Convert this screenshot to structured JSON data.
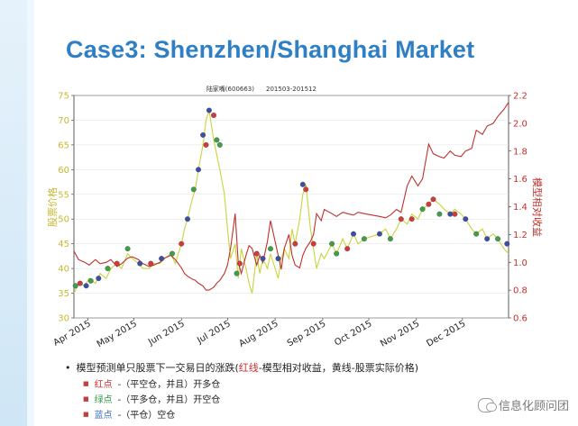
{
  "slide": {
    "title": "Case3: Shenzhen/Shanghai Market",
    "bullets": [
      {
        "text_before": "模型预测单只股票下一交易日的涨跌(",
        "red_part": "红线",
        "text_after": "-模型相对收益，黄线-股票实际价格)"
      },
      {
        "colored": "红点",
        "color": "red",
        "rest": "-（平空仓，并且）开多仓"
      },
      {
        "colored": "绿点",
        "color": "green",
        "rest": "-（平多仓，并且）开空仓"
      },
      {
        "colored": "蓝点",
        "color": "blue",
        "rest": "-（平仓）空仓"
      }
    ],
    "watermark": "信息化顾问团"
  },
  "chart_data": {
    "type": "line",
    "title": "陆家嘴(600663)",
    "subtitle": "201503-201512",
    "ylabel_left": "股票价格",
    "ylabel_right": "模型相对收益",
    "ylim_left": [
      30,
      75
    ],
    "ylim_right": [
      0.6,
      2.2
    ],
    "yticks_left": [
      "30",
      "35",
      "40",
      "45",
      "50",
      "55",
      "60",
      "65",
      "70",
      "75"
    ],
    "yticks_right": [
      "0.6",
      "0.8",
      "1.0",
      "1.2",
      "1.4",
      "1.6",
      "1.8",
      "2.0",
      "2.2"
    ],
    "xticks": [
      "Apr 2015",
      "May 2015",
      "Jun 2015",
      "Jul 2015",
      "Aug 2015",
      "Sep 2015",
      "Oct 2015",
      "Nov 2015",
      "Dec 2015"
    ],
    "x_range": [
      "2015-03-23",
      "2015-12-31"
    ],
    "colors": {
      "price": "#c8d43c",
      "return": "#c0302c",
      "red_dot": "#d23a3a",
      "green_dot": "#3f9e4a",
      "blue_dot": "#3b4fa8",
      "left_axis": "#c8b830",
      "right_axis": "#c0302c"
    },
    "series": [
      {
        "name": "黄线",
        "axis": "left",
        "points": [
          [
            "2015-03-23",
            35
          ],
          [
            "2015-03-26",
            37
          ],
          [
            "2015-03-30",
            36.5
          ],
          [
            "2015-04-02",
            38
          ],
          [
            "2015-04-06",
            37
          ],
          [
            "2015-04-09",
            39
          ],
          [
            "2015-04-13",
            38
          ],
          [
            "2015-04-16",
            40
          ],
          [
            "2015-04-20",
            41
          ],
          [
            "2015-04-23",
            40
          ],
          [
            "2015-04-27",
            43
          ],
          [
            "2015-04-30",
            42
          ],
          [
            "2015-05-04",
            41
          ],
          [
            "2015-05-07",
            40
          ],
          [
            "2015-05-11",
            40
          ],
          [
            "2015-05-14",
            41
          ],
          [
            "2015-05-18",
            41
          ],
          [
            "2015-05-21",
            42
          ],
          [
            "2015-05-25",
            43
          ],
          [
            "2015-05-28",
            41
          ],
          [
            "2015-06-01",
            45
          ],
          [
            "2015-06-03",
            48
          ],
          [
            "2015-06-05",
            50
          ],
          [
            "2015-06-08",
            54
          ],
          [
            "2015-06-10",
            56
          ],
          [
            "2015-06-12",
            60
          ],
          [
            "2015-06-15",
            65
          ],
          [
            "2015-06-17",
            70
          ],
          [
            "2015-06-19",
            72
          ],
          [
            "2015-06-22",
            66
          ],
          [
            "2015-06-24",
            63
          ],
          [
            "2015-06-26",
            60
          ],
          [
            "2015-06-29",
            55
          ],
          [
            "2015-07-01",
            48
          ],
          [
            "2015-07-03",
            42
          ],
          [
            "2015-07-06",
            45
          ],
          [
            "2015-07-08",
            38
          ],
          [
            "2015-07-10",
            44
          ],
          [
            "2015-07-13",
            40
          ],
          [
            "2015-07-15",
            37
          ],
          [
            "2015-07-17",
            35
          ],
          [
            "2015-07-20",
            43
          ],
          [
            "2015-07-22",
            39
          ],
          [
            "2015-07-24",
            42
          ],
          [
            "2015-07-27",
            40
          ],
          [
            "2015-07-29",
            43
          ],
          [
            "2015-07-31",
            41
          ],
          [
            "2015-08-03",
            38
          ],
          [
            "2015-08-05",
            42
          ],
          [
            "2015-08-07",
            44
          ],
          [
            "2015-08-10",
            42
          ],
          [
            "2015-08-12",
            48
          ],
          [
            "2015-08-14",
            45
          ],
          [
            "2015-08-17",
            50
          ],
          [
            "2015-08-19",
            55
          ],
          [
            "2015-08-21",
            57
          ],
          [
            "2015-08-24",
            48
          ],
          [
            "2015-08-26",
            44
          ],
          [
            "2015-08-28",
            40
          ],
          [
            "2015-08-31",
            43
          ],
          [
            "2015-09-02",
            42
          ],
          [
            "2015-09-07",
            45
          ],
          [
            "2015-09-10",
            43
          ],
          [
            "2015-09-14",
            46
          ],
          [
            "2015-09-17",
            44
          ],
          [
            "2015-09-21",
            47
          ],
          [
            "2015-09-24",
            45
          ],
          [
            "2015-09-28",
            46
          ],
          [
            "2015-10-08",
            47
          ],
          [
            "2015-10-12",
            48
          ],
          [
            "2015-10-15",
            46
          ],
          [
            "2015-10-19",
            48
          ],
          [
            "2015-10-22",
            50
          ],
          [
            "2015-10-26",
            49
          ],
          [
            "2015-10-29",
            51
          ],
          [
            "2015-11-02",
            50
          ],
          [
            "2015-11-05",
            52
          ],
          [
            "2015-11-09",
            53
          ],
          [
            "2015-11-12",
            54
          ],
          [
            "2015-11-16",
            53
          ],
          [
            "2015-11-19",
            52
          ],
          [
            "2015-11-23",
            51
          ],
          [
            "2015-11-26",
            52
          ],
          [
            "2015-11-30",
            51
          ],
          [
            "2015-12-03",
            50
          ],
          [
            "2015-12-07",
            48
          ],
          [
            "2015-12-10",
            47
          ],
          [
            "2015-12-14",
            48
          ],
          [
            "2015-12-17",
            46
          ],
          [
            "2015-12-21",
            47
          ],
          [
            "2015-12-24",
            46
          ],
          [
            "2015-12-28",
            44
          ],
          [
            "2015-12-31",
            43
          ]
        ]
      },
      {
        "name": "红线",
        "axis": "right",
        "points": [
          [
            "2015-03-23",
            1.08
          ],
          [
            "2015-03-26",
            1.02
          ],
          [
            "2015-03-30",
            1.0
          ],
          [
            "2015-04-02",
            0.98
          ],
          [
            "2015-04-06",
            1.02
          ],
          [
            "2015-04-09",
            0.99
          ],
          [
            "2015-04-13",
            1.0
          ],
          [
            "2015-04-16",
            1.02
          ],
          [
            "2015-04-20",
            0.97
          ],
          [
            "2015-04-23",
            0.99
          ],
          [
            "2015-04-27",
            1.03
          ],
          [
            "2015-04-30",
            1.04
          ],
          [
            "2015-05-04",
            1.02
          ],
          [
            "2015-05-07",
            0.99
          ],
          [
            "2015-05-11",
            0.97
          ],
          [
            "2015-05-14",
            0.98
          ],
          [
            "2015-05-18",
            1.0
          ],
          [
            "2015-05-21",
            1.03
          ],
          [
            "2015-05-25",
            1.05
          ],
          [
            "2015-05-28",
            1.02
          ],
          [
            "2015-06-01",
            0.96
          ],
          [
            "2015-06-03",
            0.92
          ],
          [
            "2015-06-05",
            0.9
          ],
          [
            "2015-06-08",
            0.88
          ],
          [
            "2015-06-10",
            0.87
          ],
          [
            "2015-06-12",
            0.85
          ],
          [
            "2015-06-15",
            0.83
          ],
          [
            "2015-06-17",
            0.8
          ],
          [
            "2015-06-19",
            0.8
          ],
          [
            "2015-06-22",
            0.82
          ],
          [
            "2015-06-24",
            0.85
          ],
          [
            "2015-06-26",
            0.87
          ],
          [
            "2015-06-29",
            0.92
          ],
          [
            "2015-07-01",
            0.98
          ],
          [
            "2015-07-03",
            1.1
          ],
          [
            "2015-07-06",
            1.35
          ],
          [
            "2015-07-08",
            1.0
          ],
          [
            "2015-07-10",
            0.92
          ],
          [
            "2015-07-13",
            1.05
          ],
          [
            "2015-07-15",
            1.12
          ],
          [
            "2015-07-17",
            1.1
          ],
          [
            "2015-07-20",
            0.98
          ],
          [
            "2015-07-22",
            1.05
          ],
          [
            "2015-07-24",
            1.0
          ],
          [
            "2015-07-27",
            1.15
          ],
          [
            "2015-07-29",
            1.3
          ],
          [
            "2015-07-31",
            1.2
          ],
          [
            "2015-08-03",
            1.05
          ],
          [
            "2015-08-05",
            0.95
          ],
          [
            "2015-08-07",
            1.1
          ],
          [
            "2015-08-10",
            1.2
          ],
          [
            "2015-08-12",
            1.05
          ],
          [
            "2015-08-14",
            0.98
          ],
          [
            "2015-08-17",
            0.96
          ],
          [
            "2015-08-19",
            1.05
          ],
          [
            "2015-08-21",
            1.1
          ],
          [
            "2015-08-24",
            1.15
          ],
          [
            "2015-08-26",
            1.2
          ],
          [
            "2015-08-28",
            1.35
          ],
          [
            "2015-08-31",
            1.3
          ],
          [
            "2015-09-02",
            1.38
          ],
          [
            "2015-09-07",
            1.35
          ],
          [
            "2015-09-10",
            1.33
          ],
          [
            "2015-09-14",
            1.36
          ],
          [
            "2015-09-17",
            1.35
          ],
          [
            "2015-09-21",
            1.34
          ],
          [
            "2015-09-24",
            1.36
          ],
          [
            "2015-09-28",
            1.35
          ],
          [
            "2015-10-08",
            1.33
          ],
          [
            "2015-10-12",
            1.32
          ],
          [
            "2015-10-15",
            1.34
          ],
          [
            "2015-10-19",
            1.38
          ],
          [
            "2015-10-22",
            1.36
          ],
          [
            "2015-10-26",
            1.55
          ],
          [
            "2015-10-29",
            1.62
          ],
          [
            "2015-11-02",
            1.55
          ],
          [
            "2015-11-05",
            1.6
          ],
          [
            "2015-11-09",
            1.85
          ],
          [
            "2015-11-12",
            1.78
          ],
          [
            "2015-11-16",
            1.76
          ],
          [
            "2015-11-19",
            1.75
          ],
          [
            "2015-11-23",
            1.8
          ],
          [
            "2015-11-26",
            1.77
          ],
          [
            "2015-11-30",
            1.76
          ],
          [
            "2015-12-03",
            1.8
          ],
          [
            "2015-12-07",
            1.82
          ],
          [
            "2015-12-10",
            1.95
          ],
          [
            "2015-12-14",
            1.92
          ],
          [
            "2015-12-17",
            1.98
          ],
          [
            "2015-12-21",
            2.0
          ],
          [
            "2015-12-24",
            2.05
          ],
          [
            "2015-12-28",
            2.1
          ],
          [
            "2015-12-31",
            2.15
          ]
        ]
      }
    ],
    "dots": [
      {
        "date": "2015-03-24",
        "price": 36.5,
        "c": "green"
      },
      {
        "date": "2015-03-27",
        "price": 37,
        "c": "red"
      },
      {
        "date": "2015-03-31",
        "price": 36.5,
        "c": "blue"
      },
      {
        "date": "2015-04-03",
        "price": 37.5,
        "c": "green"
      },
      {
        "date": "2015-04-08",
        "price": 38,
        "c": "blue"
      },
      {
        "date": "2015-04-14",
        "price": 40,
        "c": "green"
      },
      {
        "date": "2015-04-20",
        "price": 41,
        "c": "red"
      },
      {
        "date": "2015-04-27",
        "price": 44,
        "c": "green"
      },
      {
        "date": "2015-05-05",
        "price": 41,
        "c": "blue"
      },
      {
        "date": "2015-05-12",
        "price": 41,
        "c": "red"
      },
      {
        "date": "2015-05-19",
        "price": 42,
        "c": "blue"
      },
      {
        "date": "2015-05-26",
        "price": 43,
        "c": "green"
      },
      {
        "date": "2015-06-01",
        "price": 45,
        "c": "red"
      },
      {
        "date": "2015-06-05",
        "price": 50,
        "c": "blue"
      },
      {
        "date": "2015-06-09",
        "price": 56,
        "c": "green"
      },
      {
        "date": "2015-06-12",
        "price": 60,
        "c": "blue"
      },
      {
        "date": "2015-06-15",
        "price": 67,
        "c": "blue"
      },
      {
        "date": "2015-06-17",
        "price": 65,
        "c": "red"
      },
      {
        "date": "2015-06-19",
        "price": 72,
        "c": "blue"
      },
      {
        "date": "2015-06-22",
        "price": 71,
        "c": "red"
      },
      {
        "date": "2015-06-24",
        "price": 66,
        "c": "green"
      },
      {
        "date": "2015-06-26",
        "price": 65,
        "c": "green"
      },
      {
        "date": "2015-07-07",
        "price": 39,
        "c": "green"
      },
      {
        "date": "2015-07-09",
        "price": 41,
        "c": "red"
      },
      {
        "date": "2015-07-20",
        "price": 43,
        "c": "red"
      },
      {
        "date": "2015-07-24",
        "price": 42,
        "c": "blue"
      },
      {
        "date": "2015-07-29",
        "price": 44,
        "c": "green"
      },
      {
        "date": "2015-08-03",
        "price": 42,
        "c": "blue"
      },
      {
        "date": "2015-08-14",
        "price": 45,
        "c": "red"
      },
      {
        "date": "2015-08-19",
        "price": 57,
        "c": "blue"
      },
      {
        "date": "2015-08-21",
        "price": 56,
        "c": "red"
      },
      {
        "date": "2015-08-26",
        "price": 45,
        "c": "red"
      },
      {
        "date": "2015-09-07",
        "price": 45,
        "c": "green"
      },
      {
        "date": "2015-09-10",
        "price": 43,
        "c": "green"
      },
      {
        "date": "2015-09-17",
        "price": 44,
        "c": "red"
      },
      {
        "date": "2015-09-21",
        "price": 47,
        "c": "blue"
      },
      {
        "date": "2015-09-28",
        "price": 46,
        "c": "green"
      },
      {
        "date": "2015-10-08",
        "price": 47,
        "c": "blue"
      },
      {
        "date": "2015-10-15",
        "price": 46,
        "c": "green"
      },
      {
        "date": "2015-10-22",
        "price": 50,
        "c": "red"
      },
      {
        "date": "2015-10-29",
        "price": 50,
        "c": "red"
      },
      {
        "date": "2015-11-05",
        "price": 52,
        "c": "green"
      },
      {
        "date": "2015-11-09",
        "price": 53,
        "c": "red"
      },
      {
        "date": "2015-11-12",
        "price": 54,
        "c": "red"
      },
      {
        "date": "2015-11-16",
        "price": 51,
        "c": "green"
      },
      {
        "date": "2015-11-23",
        "price": 51,
        "c": "blue"
      },
      {
        "date": "2015-11-26",
        "price": 51,
        "c": "red"
      },
      {
        "date": "2015-12-03",
        "price": 50,
        "c": "blue"
      },
      {
        "date": "2015-12-10",
        "price": 47,
        "c": "green"
      },
      {
        "date": "2015-12-17",
        "price": 46,
        "c": "blue"
      },
      {
        "date": "2015-12-24",
        "price": 46,
        "c": "green"
      },
      {
        "date": "2015-12-30",
        "price": 45,
        "c": "blue"
      }
    ]
  }
}
